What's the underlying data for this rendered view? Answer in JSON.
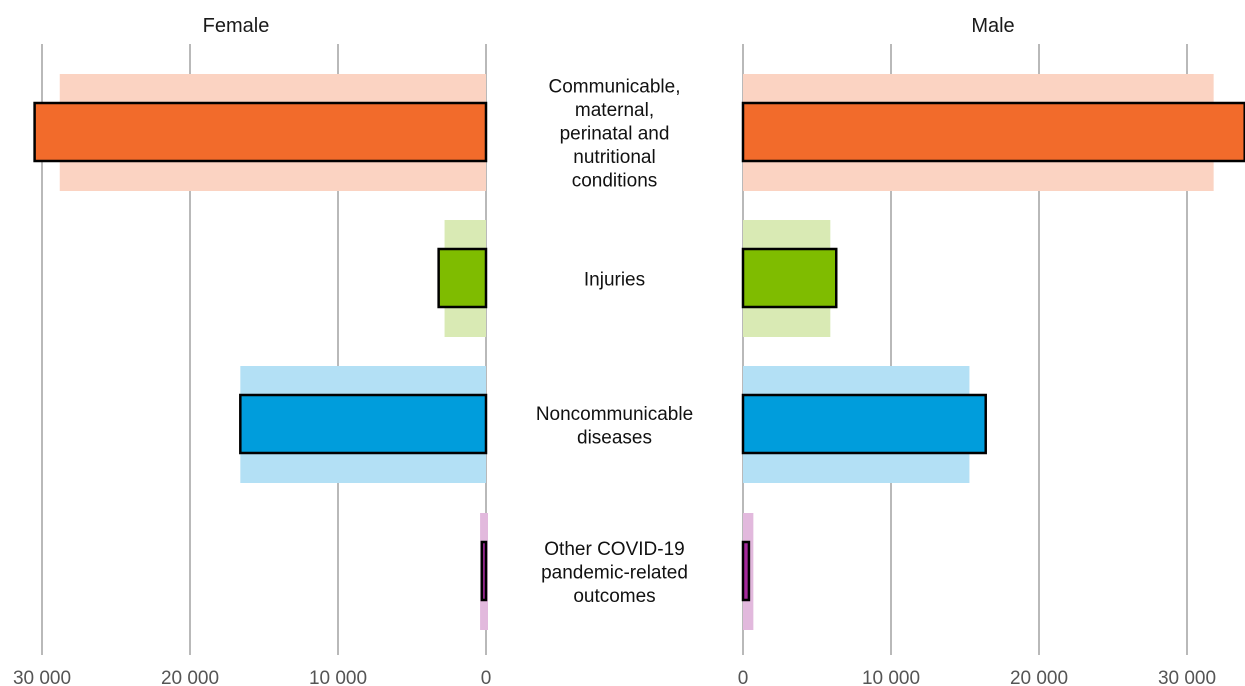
{
  "chart_data": {
    "type": "bar",
    "orientation": "horizontal-butterfly",
    "panels": [
      {
        "title": "Female",
        "direction": "left"
      },
      {
        "title": "Male",
        "direction": "right"
      }
    ],
    "categories": [
      {
        "label": "Communicable, maternal, perinatal and nutritional conditions",
        "lines": [
          "Communicable,",
          "maternal,",
          "perinatal and",
          "nutritional",
          "conditions"
        ],
        "color": "#f26b2b",
        "band_color": "#fbd3c2",
        "female": 30500,
        "female_band": 28800,
        "male": 33900,
        "male_band": 31800
      },
      {
        "label": "Injuries",
        "lines": [
          "Injuries"
        ],
        "color": "#7fbc00",
        "band_color": "#d9eab4",
        "female": 3200,
        "female_band": 2800,
        "male": 6300,
        "male_band": 5900
      },
      {
        "label": "Noncommunicable diseases",
        "lines": [
          "Noncommunicable",
          "diseases"
        ],
        "color": "#009ddc",
        "band_color": "#b3e0f5",
        "female": 16600,
        "female_band": 16600,
        "male": 16400,
        "male_band": 15300
      },
      {
        "label": "Other COVID-19 pandemic-related outcomes",
        "lines": [
          "Other COVID-19",
          "pandemic-related",
          "outcomes"
        ],
        "color": "#a3299a",
        "band_color": "#e2b9dd",
        "female": 280,
        "female_band": 400,
        "male": 400,
        "male_band": 700
      }
    ],
    "ticks": [
      0,
      10000,
      20000,
      30000
    ],
    "tick_labels": [
      "0",
      "10 000",
      "20 000",
      "30 000"
    ],
    "xlim": [
      0,
      34000
    ],
    "grid": true
  }
}
